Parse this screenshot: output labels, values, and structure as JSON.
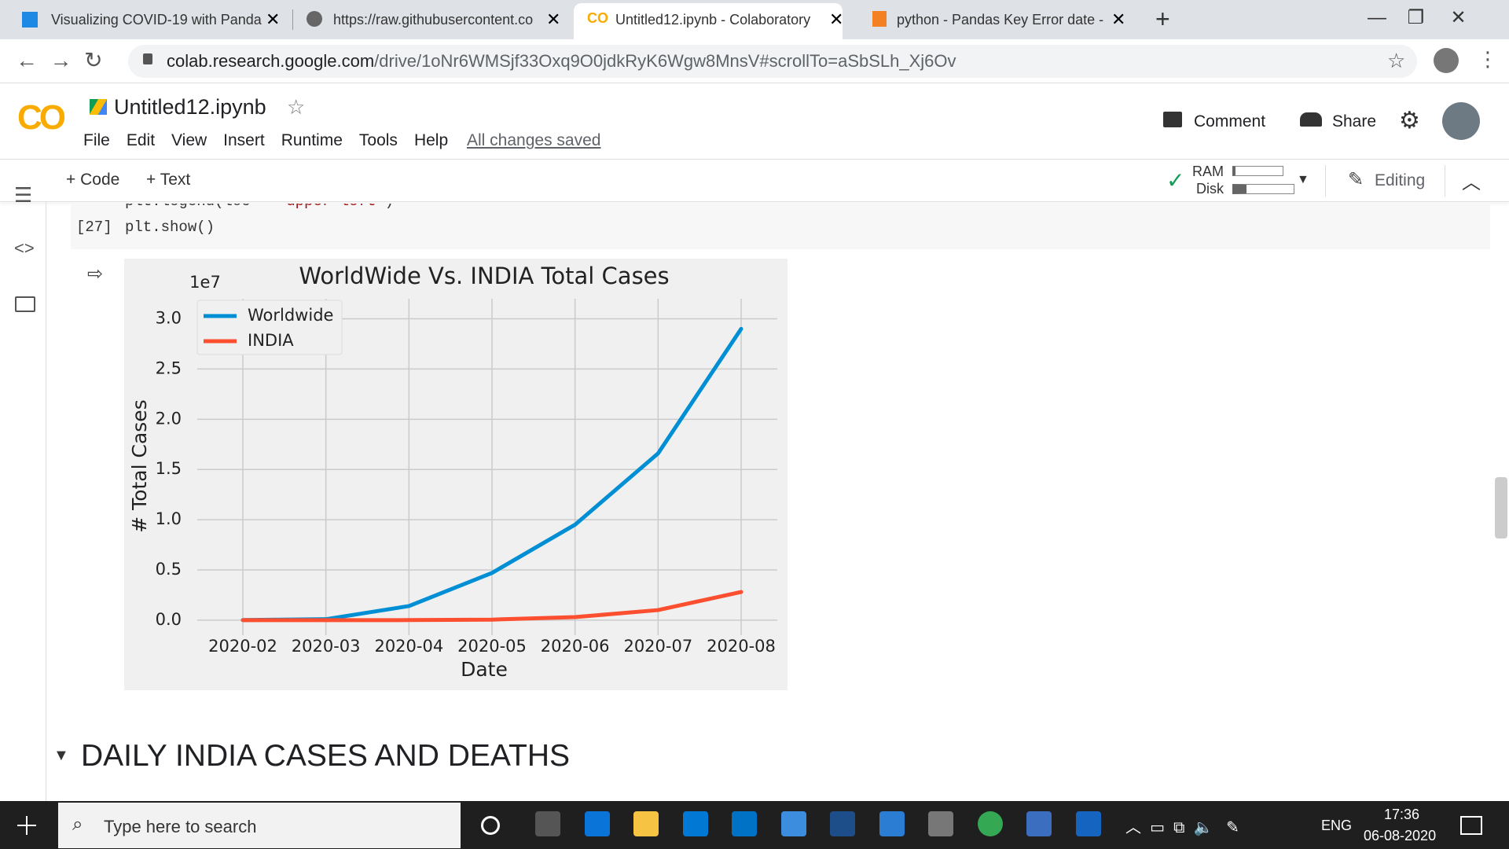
{
  "browser": {
    "tabs": [
      {
        "title": "Visualizing COVID-19 with Panda"
      },
      {
        "title": "https://raw.githubusercontent.co"
      },
      {
        "title": "Untitled12.ipynb - Colaboratory"
      },
      {
        "title": "python - Pandas Key Error date -"
      }
    ],
    "url_host": "colab.research.google.com",
    "url_path": "/drive/1oNr6WMSjf33Oxq9O0jdkRyK6Wgw8MnsV#scrollTo=aSbSLh_Xj6Ov"
  },
  "colab": {
    "logo": "CO",
    "notebook_name": "Untitled12.ipynb",
    "menu": [
      "File",
      "Edit",
      "View",
      "Insert",
      "Runtime",
      "Tools",
      "Help"
    ],
    "save_status": "All changes saved",
    "comment": "Comment",
    "share": "Share",
    "add_code": "Code",
    "add_text": "Text",
    "ram": "RAM",
    "disk": "Disk",
    "editing": "Editing"
  },
  "cell": {
    "line1": [
      "plt.legend(loc = ",
      "'upper left'",
      ")"
    ],
    "prompt": "[27]",
    "line2": "plt.show()"
  },
  "chart_data": {
    "type": "line",
    "title": "WorldWide Vs. INDIA Total Cases",
    "offset_label": "1e7",
    "x_label": "Date",
    "y_label": "# Total Cases",
    "categories": [
      "2020-02",
      "2020-03",
      "2020-04",
      "2020-05",
      "2020-06",
      "2020-07",
      "2020-08"
    ],
    "series": [
      {
        "name": "Worldwide",
        "color": "#008fd5",
        "values": [
          0.001,
          0.009,
          0.14,
          0.47,
          0.95,
          1.66,
          2.9
        ]
      },
      {
        "name": "INDIA",
        "color": "#fc4f30",
        "values": [
          0,
          0,
          0.0002,
          0.005,
          0.03,
          0.1,
          0.28
        ]
      }
    ],
    "ylim": [
      -0.15,
      3.2
    ],
    "yticks": [
      {
        "value": 0,
        "label": "0.0"
      },
      {
        "value": 0.5,
        "label": "0.5"
      },
      {
        "value": 1,
        "label": "1.0"
      },
      {
        "value": 1.5,
        "label": "1.5"
      },
      {
        "value": 2,
        "label": "2.0"
      },
      {
        "value": 2.5,
        "label": "2.5"
      },
      {
        "value": 3,
        "label": "3.0"
      }
    ],
    "grid": true,
    "legend": "upper left"
  },
  "section_heading": "DAILY INDIA CASES AND DEATHS",
  "taskbar": {
    "search": "Type here to search",
    "language": "ENG",
    "time": "17:36",
    "date": "06-08-2020"
  }
}
